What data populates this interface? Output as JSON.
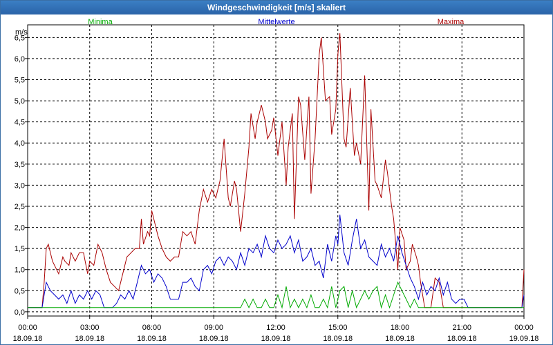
{
  "window": {
    "title": "Windgeschwindigkeit [m/s] skaliert"
  },
  "chart_data": {
    "type": "line",
    "title": "Windgeschwindigkeit [m/s] skaliert",
    "ylabel": "m/s",
    "xlabel": "",
    "ylim": [
      -0.1,
      6.8
    ],
    "xlim": [
      0,
      24
    ],
    "grid": true,
    "yticks": [
      0.0,
      0.5,
      1.0,
      1.5,
      2.0,
      2.5,
      3.0,
      3.5,
      4.0,
      4.5,
      5.0,
      5.5,
      6.0,
      6.5
    ],
    "ytick_labels": [
      "0,0",
      "0,5",
      "1,0",
      "1,5",
      "2,0",
      "2,5",
      "3,0",
      "3,5",
      "4,0",
      "4,5",
      "5,0",
      "5,5",
      "6,0",
      "6,5"
    ],
    "xticks": [
      0,
      3,
      6,
      9,
      12,
      15,
      18,
      21,
      24
    ],
    "xtick_time_labels": [
      "00:00",
      "03:00",
      "06:00",
      "09:00",
      "12:00",
      "15:00",
      "18:00",
      "21:00",
      "00:00"
    ],
    "xtick_date_labels": [
      "18.09.18",
      "18.09.18",
      "18.09.18",
      "18.09.18",
      "18.09.18",
      "18.09.18",
      "18.09.18",
      "18.09.18",
      "19.09.18"
    ],
    "legend": [
      {
        "name": "Minima",
        "color": "#00aa00",
        "position": "top-left"
      },
      {
        "name": "Mittelwerte",
        "color": "#0000cc",
        "position": "top-center"
      },
      {
        "name": "Maxima",
        "color": "#aa0000",
        "position": "top-right"
      }
    ],
    "series": [
      {
        "name": "Maxima",
        "color": "#aa0000",
        "x": [
          0,
          0.7,
          0.8,
          0.9,
          1.0,
          1.2,
          1.4,
          1.5,
          1.7,
          1.8,
          2.0,
          2.1,
          2.3,
          2.5,
          2.7,
          2.9,
          3.0,
          3.2,
          3.4,
          3.6,
          3.8,
          4.0,
          4.2,
          4.4,
          4.6,
          4.8,
          5.0,
          5.2,
          5.4,
          5.5,
          5.6,
          5.8,
          5.9,
          6.0,
          6.2,
          6.3,
          6.5,
          6.7,
          6.9,
          7.1,
          7.3,
          7.5,
          7.7,
          7.9,
          8.1,
          8.3,
          8.5,
          8.7,
          8.9,
          9.1,
          9.3,
          9.5,
          9.7,
          9.8,
          10.0,
          10.1,
          10.3,
          10.5,
          10.7,
          10.8,
          11.0,
          11.1,
          11.3,
          11.5,
          11.6,
          11.8,
          11.9,
          12.1,
          12.3,
          12.5,
          12.6,
          12.8,
          12.9,
          13.1,
          13.2,
          13.4,
          13.6,
          13.7,
          13.9,
          14.1,
          14.2,
          14.4,
          14.6,
          14.7,
          14.9,
          15.0,
          15.1,
          15.3,
          15.4,
          15.6,
          15.8,
          15.9,
          16.1,
          16.3,
          16.5,
          16.6,
          16.8,
          16.9,
          17.1,
          17.3,
          17.4,
          17.6,
          17.7,
          17.9,
          18.0,
          18.2,
          18.3,
          18.5,
          18.6,
          18.8,
          18.9,
          19.0,
          19.2,
          19.3,
          19.5,
          19.7,
          19.9,
          20.1,
          20.3,
          20.4,
          20.6,
          20.7,
          20.9,
          21.0,
          21.1,
          21.3,
          21.4,
          21.6,
          21.8,
          22.0,
          22.5,
          23.0,
          23.5,
          23.9,
          24.0
        ],
        "values": [
          0.1,
          0.1,
          0.7,
          1.5,
          1.6,
          1.2,
          1.0,
          0.9,
          1.3,
          1.2,
          1.1,
          1.4,
          1.2,
          1.4,
          1.4,
          0.9,
          1.2,
          1.1,
          1.6,
          1.4,
          1.0,
          0.7,
          0.6,
          0.5,
          0.9,
          1.3,
          1.4,
          1.5,
          1.5,
          2.2,
          1.6,
          1.9,
          1.8,
          2.4,
          2.0,
          1.8,
          1.5,
          1.3,
          1.2,
          1.3,
          1.3,
          1.9,
          1.8,
          1.9,
          1.6,
          2.4,
          2.9,
          2.6,
          2.9,
          2.7,
          3.1,
          4.1,
          2.7,
          2.5,
          3.1,
          2.9,
          1.9,
          2.8,
          3.9,
          4.7,
          4.1,
          4.5,
          4.9,
          4.5,
          4.1,
          4.3,
          4.6,
          3.7,
          4.5,
          3.0,
          3.9,
          4.7,
          2.2,
          5.1,
          4.9,
          3.6,
          5.1,
          2.8,
          4.1,
          6.1,
          6.5,
          5.0,
          5.1,
          4.2,
          4.8,
          6.1,
          6.6,
          4.1,
          3.9,
          5.3,
          3.7,
          4.0,
          3.5,
          5.6,
          2.4,
          4.8,
          3.1,
          3.0,
          2.7,
          3.6,
          3.3,
          2.5,
          2.2,
          1.0,
          2.0,
          1.7,
          1.0,
          1.2,
          1.6,
          1.3,
          1.1,
          0.7,
          0.1,
          0.1,
          0.1,
          0.8,
          0.7,
          0.1,
          0.1,
          0.1,
          0.1,
          0.1,
          0.1,
          0.1,
          0.1,
          0.1,
          0.1,
          0.1,
          0.1,
          0.1,
          0.1,
          0.1,
          0.1,
          0.1,
          1.0
        ]
      },
      {
        "name": "Mittelwerte",
        "color": "#0000cc",
        "x": [
          0,
          0.7,
          0.9,
          1.1,
          1.3,
          1.5,
          1.7,
          1.9,
          2.1,
          2.3,
          2.5,
          2.7,
          2.9,
          3.1,
          3.3,
          3.5,
          3.7,
          3.9,
          4.1,
          4.3,
          4.5,
          4.7,
          4.9,
          5.1,
          5.3,
          5.5,
          5.7,
          5.9,
          6.1,
          6.3,
          6.5,
          6.7,
          6.9,
          7.1,
          7.3,
          7.5,
          7.7,
          7.9,
          8.1,
          8.3,
          8.5,
          8.7,
          8.9,
          9.1,
          9.3,
          9.5,
          9.7,
          9.9,
          10.1,
          10.3,
          10.5,
          10.7,
          10.9,
          11.1,
          11.3,
          11.5,
          11.7,
          11.9,
          12.1,
          12.3,
          12.5,
          12.7,
          12.9,
          13.1,
          13.3,
          13.5,
          13.7,
          13.9,
          14.1,
          14.3,
          14.5,
          14.7,
          14.9,
          15.0,
          15.1,
          15.3,
          15.5,
          15.7,
          15.9,
          16.1,
          16.3,
          16.5,
          16.7,
          16.9,
          17.1,
          17.3,
          17.5,
          17.7,
          17.9,
          18.1,
          18.3,
          18.5,
          18.7,
          18.9,
          19.1,
          19.3,
          19.5,
          19.7,
          19.9,
          20.1,
          20.3,
          20.5,
          20.7,
          20.9,
          21.1,
          21.3,
          21.5,
          22.0,
          22.5,
          23.0,
          23.5,
          23.9,
          24.0
        ],
        "values": [
          0.1,
          0.1,
          0.7,
          0.5,
          0.4,
          0.3,
          0.4,
          0.2,
          0.5,
          0.2,
          0.4,
          0.3,
          0.5,
          0.3,
          0.5,
          0.4,
          0.1,
          0.1,
          0.1,
          0.2,
          0.4,
          0.3,
          0.5,
          0.3,
          0.7,
          1.1,
          0.9,
          1.0,
          0.7,
          0.9,
          0.8,
          0.6,
          0.3,
          0.3,
          0.3,
          0.7,
          0.7,
          0.8,
          0.6,
          0.5,
          1.0,
          1.1,
          0.9,
          1.2,
          1.3,
          1.1,
          1.3,
          1.2,
          1.0,
          1.4,
          1.1,
          1.5,
          1.4,
          1.6,
          1.3,
          1.8,
          1.5,
          1.4,
          1.7,
          1.5,
          1.6,
          1.8,
          1.4,
          1.7,
          1.2,
          1.3,
          1.5,
          1.1,
          1.2,
          0.8,
          1.6,
          1.2,
          1.8,
          1.6,
          2.3,
          1.4,
          1.1,
          1.7,
          2.2,
          1.5,
          1.7,
          1.3,
          1.2,
          1.1,
          1.6,
          1.3,
          1.5,
          1.2,
          1.8,
          1.4,
          1.1,
          0.8,
          0.6,
          0.3,
          0.7,
          0.4,
          0.6,
          0.5,
          0.8,
          0.4,
          0.7,
          0.3,
          0.2,
          0.3,
          0.3,
          0.1,
          0.1,
          0.1,
          0.1,
          0.1,
          0.1,
          0.1,
          0.4
        ]
      },
      {
        "name": "Minima",
        "color": "#00aa00",
        "x": [
          0,
          10.3,
          10.5,
          10.7,
          10.9,
          11.1,
          11.3,
          11.5,
          11.7,
          11.9,
          12.1,
          12.3,
          12.5,
          12.7,
          12.9,
          13.1,
          13.3,
          13.5,
          13.7,
          13.9,
          14.1,
          14.3,
          14.5,
          14.7,
          14.9,
          15.1,
          15.3,
          15.5,
          15.7,
          15.9,
          16.1,
          16.3,
          16.5,
          16.7,
          16.9,
          17.1,
          17.3,
          17.5,
          17.7,
          17.9,
          18.1,
          18.3,
          18.5,
          18.7,
          18.9,
          24.0
        ],
        "values": [
          0.1,
          0.1,
          0.3,
          0.1,
          0.3,
          0.1,
          0.1,
          0.3,
          0.1,
          0.1,
          0.4,
          0.1,
          0.6,
          0.1,
          0.3,
          0.1,
          0.3,
          0.1,
          0.4,
          0.1,
          0.1,
          0.3,
          0.1,
          0.6,
          0.1,
          0.5,
          0.6,
          0.1,
          0.5,
          0.1,
          0.3,
          0.5,
          0.3,
          0.5,
          0.6,
          0.1,
          0.4,
          0.1,
          0.4,
          0.7,
          0.5,
          0.3,
          0.1,
          0.3,
          0.1,
          0.1
        ]
      }
    ]
  }
}
